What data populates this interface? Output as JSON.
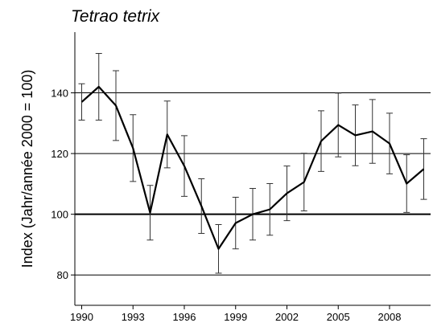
{
  "chart_data": {
    "type": "line",
    "title": "Tetrao tetrix",
    "y_label": "Index (Jahr/année 2000 = 100)",
    "x": [
      1990,
      1991,
      1992,
      1993,
      1994,
      1995,
      1996,
      1997,
      1998,
      1999,
      2000,
      2001,
      2002,
      2003,
      2004,
      2005,
      2006,
      2007,
      2008,
      2009,
      2010
    ],
    "series": [
      {
        "name": "Tetrao tetrix",
        "color": "#000000",
        "values": [
          137,
          142,
          135.8,
          121.8,
          100.5,
          126.3,
          115.9,
          102.7,
          88.6,
          97.1,
          100,
          101.6,
          106.9,
          110.6,
          124.1,
          129.4,
          126,
          127.3,
          123.3,
          110.1,
          114.9
        ],
        "errors": [
          6,
          11,
          11.5,
          11,
          9,
          11,
          10,
          9,
          8,
          8.5,
          8.5,
          8.5,
          9,
          9.5,
          10,
          10.5,
          10,
          10.5,
          10,
          9.5,
          10
        ]
      }
    ],
    "xlim": [
      1989.6,
      2010.4
    ],
    "xticks": [
      1990,
      1993,
      1996,
      1999,
      2002,
      2005,
      2008
    ],
    "ylim": [
      70,
      160
    ],
    "yticks": [
      80,
      100,
      120,
      140
    ],
    "grid": true,
    "reference_line": 100
  }
}
